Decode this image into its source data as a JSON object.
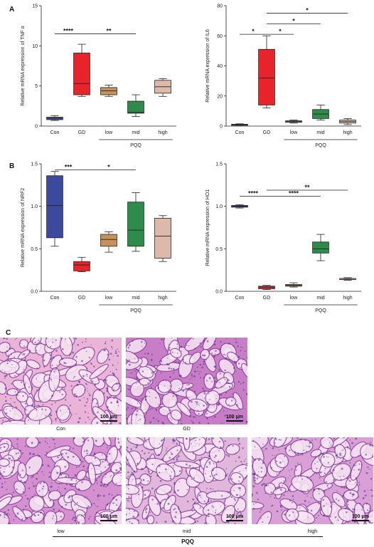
{
  "panel_labels": {
    "a": "A",
    "b": "B",
    "c": "C"
  },
  "chart_data": [
    {
      "id": "tnf",
      "type": "box",
      "ylabel": "Relative mRNA expression of TNF α",
      "ylim": [
        0,
        15
      ],
      "yticks": [
        0,
        5,
        10,
        15
      ],
      "categories": [
        "Con",
        "GD",
        "low",
        "mid",
        "high"
      ],
      "group_label": "PQQ",
      "group_members": [
        "low",
        "mid",
        "high"
      ],
      "colors": [
        "#3b4a9c",
        "#e8242a",
        "#c7925a",
        "#2e8b4a",
        "#dcb9a8"
      ],
      "boxes": [
        {
          "min": 0.7,
          "q1": 0.8,
          "median": 1.0,
          "q3": 1.1,
          "max": 1.3
        },
        {
          "min": 3.7,
          "q1": 3.9,
          "median": 5.3,
          "q3": 9.1,
          "max": 10.2
        },
        {
          "min": 3.7,
          "q1": 3.9,
          "median": 4.4,
          "q3": 4.8,
          "max": 5.1
        },
        {
          "min": 1.2,
          "q1": 1.6,
          "median": 1.7,
          "q3": 3.1,
          "max": 3.9
        },
        {
          "min": 3.7,
          "q1": 4.1,
          "median": 4.9,
          "q3": 5.7,
          "max": 5.9
        }
      ],
      "significance": [
        {
          "from": 0,
          "to": 1,
          "y": 11.5,
          "label": "****"
        },
        {
          "from": 1,
          "to": 3,
          "y": 11.5,
          "label": "**"
        }
      ]
    },
    {
      "id": "il6",
      "type": "box",
      "ylabel": "Relative mRNA expression of IL6",
      "ylim": [
        0,
        80
      ],
      "yticks": [
        0,
        20,
        40,
        60,
        80
      ],
      "categories": [
        "Con",
        "GD",
        "low",
        "mid",
        "high"
      ],
      "group_label": "PQQ",
      "group_members": [
        "low",
        "mid",
        "high"
      ],
      "colors": [
        "#3b4a9c",
        "#e8242a",
        "#c7925a",
        "#2e8b4a",
        "#dcb9a8"
      ],
      "boxes": [
        {
          "min": 0.5,
          "q1": 0.8,
          "median": 1.0,
          "q3": 1.2,
          "max": 1.5
        },
        {
          "min": 12,
          "q1": 14,
          "median": 32,
          "q3": 51,
          "max": 60
        },
        {
          "min": 2,
          "q1": 2.5,
          "median": 3.0,
          "q3": 3.5,
          "max": 4
        },
        {
          "min": 4,
          "q1": 5,
          "median": 8,
          "q3": 11,
          "max": 14
        },
        {
          "min": 1,
          "q1": 2,
          "median": 3,
          "q3": 4,
          "max": 5
        }
      ],
      "significance": [
        {
          "from": 0,
          "to": 1,
          "y": 61,
          "label": "*"
        },
        {
          "from": 1,
          "to": 2,
          "y": 61,
          "label": "*"
        },
        {
          "from": 1,
          "to": 3,
          "y": 68,
          "label": "*"
        },
        {
          "from": 1,
          "to": 4,
          "y": 75,
          "label": "*"
        }
      ]
    },
    {
      "id": "nrf2",
      "type": "box",
      "ylabel": "Relative mRNA expression of NRF2",
      "ylim": [
        0,
        1.5
      ],
      "yticks": [
        0.0,
        0.5,
        1.0,
        1.5
      ],
      "categories": [
        "Con",
        "GD",
        "low",
        "mid",
        "high"
      ],
      "group_label": "PQQ",
      "group_members": [
        "low",
        "mid",
        "high"
      ],
      "colors": [
        "#3b4a9c",
        "#e8242a",
        "#c7925a",
        "#2e8b4a",
        "#dcb9a8"
      ],
      "boxes": [
        {
          "min": 0.53,
          "q1": 0.63,
          "median": 1.01,
          "q3": 1.36,
          "max": 1.41
        },
        {
          "min": 0.23,
          "q1": 0.24,
          "median": 0.31,
          "q3": 0.35,
          "max": 0.4
        },
        {
          "min": 0.46,
          "q1": 0.53,
          "median": 0.61,
          "q3": 0.67,
          "max": 0.7
        },
        {
          "min": 0.47,
          "q1": 0.53,
          "median": 0.72,
          "q3": 1.05,
          "max": 1.16
        },
        {
          "min": 0.35,
          "q1": 0.39,
          "median": 0.65,
          "q3": 0.86,
          "max": 0.89
        }
      ],
      "significance": [
        {
          "from": 0,
          "to": 1,
          "y": 1.43,
          "label": "***"
        },
        {
          "from": 1,
          "to": 3,
          "y": 1.43,
          "label": "*"
        }
      ]
    },
    {
      "id": "ho1",
      "type": "box",
      "ylabel": "Relative mRNA expression of HO1",
      "ylim": [
        0,
        1.5
      ],
      "yticks": [
        0.0,
        0.5,
        1.0,
        1.5
      ],
      "categories": [
        "Con",
        "GD",
        "low",
        "mid",
        "high"
      ],
      "group_label": "PQQ",
      "group_members": [
        "low",
        "mid",
        "high"
      ],
      "colors": [
        "#3b4a9c",
        "#e8242a",
        "#c7925a",
        "#2e8b4a",
        "#dcb9a8"
      ],
      "boxes": [
        {
          "min": 0.98,
          "q1": 0.99,
          "median": 1.0,
          "q3": 1.01,
          "max": 1.02
        },
        {
          "min": 0.02,
          "q1": 0.03,
          "median": 0.05,
          "q3": 0.06,
          "max": 0.07
        },
        {
          "min": 0.05,
          "q1": 0.06,
          "median": 0.07,
          "q3": 0.08,
          "max": 0.1
        },
        {
          "min": 0.36,
          "q1": 0.45,
          "median": 0.5,
          "q3": 0.58,
          "max": 0.67
        },
        {
          "min": 0.13,
          "q1": 0.14,
          "median": 0.15,
          "q3": 0.15,
          "max": 0.16
        }
      ],
      "significance": [
        {
          "from": 0,
          "to": 1,
          "y": 1.12,
          "label": "****"
        },
        {
          "from": 1,
          "to": 3,
          "y": 1.12,
          "label": "****"
        },
        {
          "from": 1,
          "to": 4,
          "y": 1.19,
          "label": "**"
        }
      ]
    }
  ],
  "histology": {
    "scale_bar": "100 μm",
    "images": [
      {
        "caption": "Con",
        "palette": "#e9b4d7"
      },
      {
        "caption": "GD",
        "palette": "#c87ec6"
      },
      {
        "caption": "low",
        "palette": "#d590cf"
      },
      {
        "caption": "mid",
        "palette": "#e2b7dc"
      },
      {
        "caption": "high",
        "palette": "#d9a0d5"
      }
    ],
    "group_label": "PQQ"
  }
}
